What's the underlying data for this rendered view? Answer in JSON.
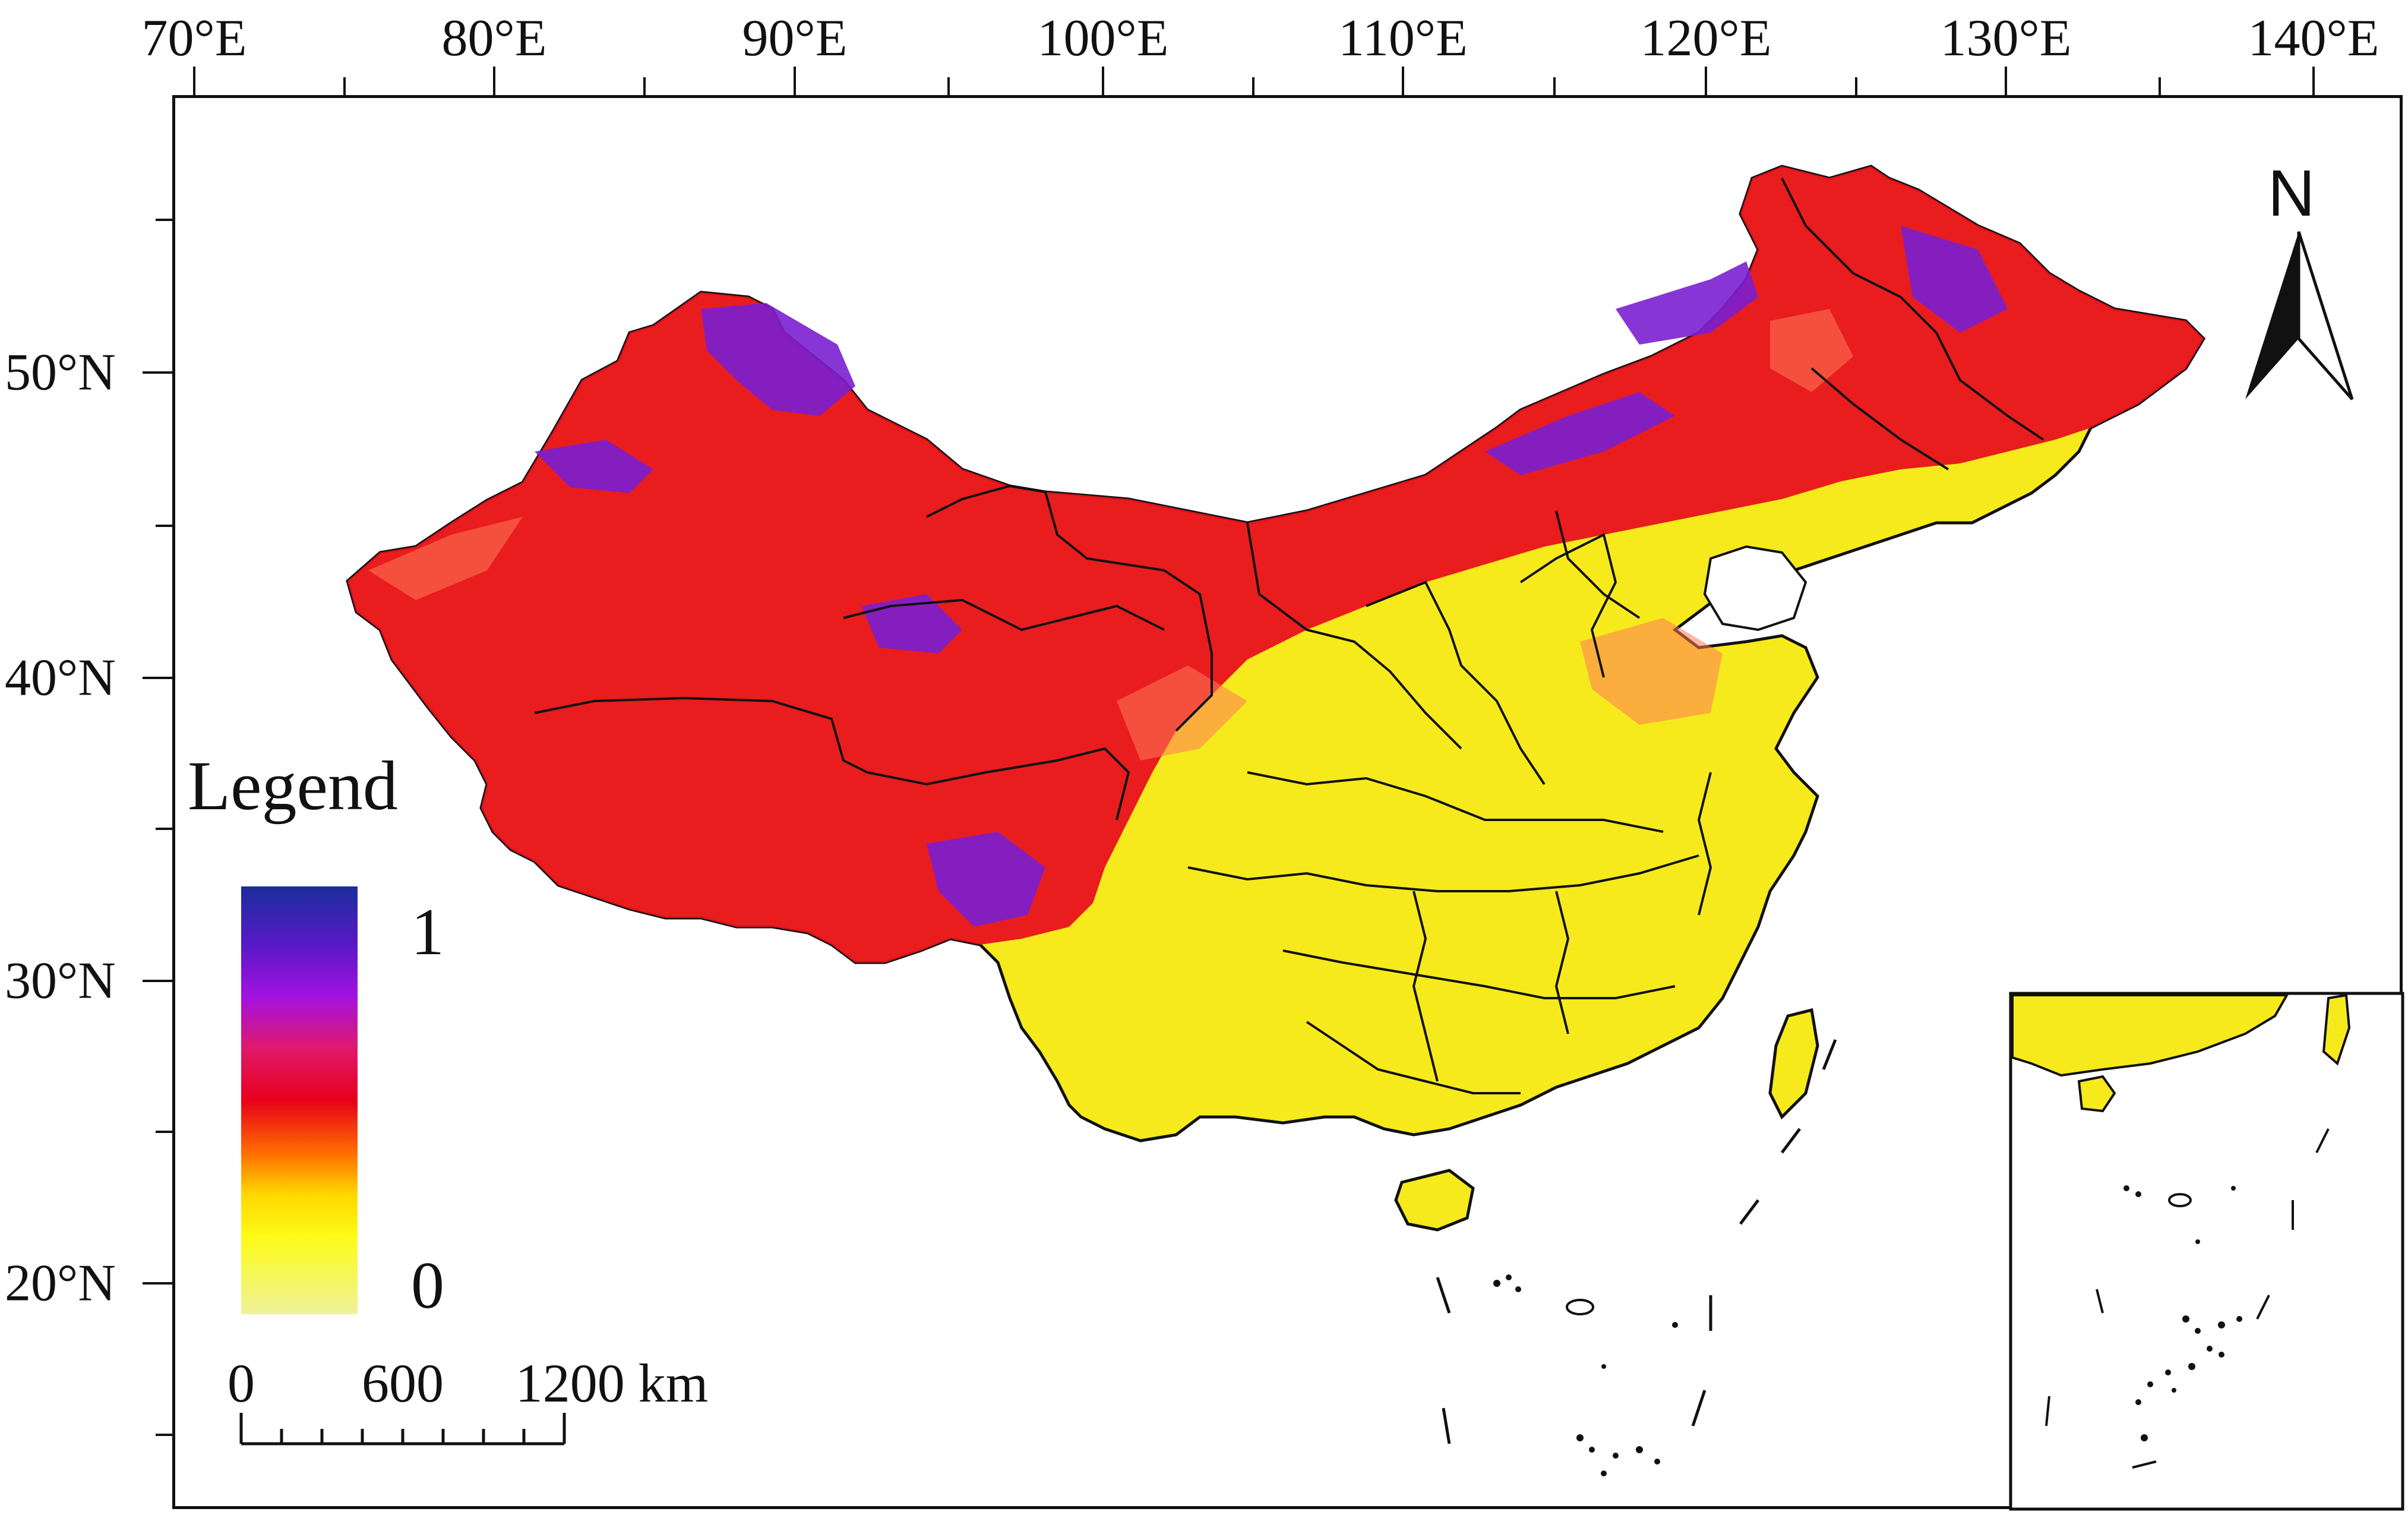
{
  "longitude_labels": [
    "70°E",
    "80°E",
    "90°E",
    "100°E",
    "110°E",
    "120°E",
    "130°E",
    "140°E"
  ],
  "latitude_labels": [
    "50°N",
    "40°N",
    "30°N",
    "20°N"
  ],
  "legend": {
    "title": "Legend",
    "max_label": "1",
    "min_label": "0",
    "colors": [
      "#1a2d9c",
      "#a512e0",
      "#e8001a",
      "#ffd800",
      "#eef29a"
    ]
  },
  "scale_bar": {
    "labels": [
      "0",
      "600",
      "1200 km"
    ]
  },
  "north_arrow": {
    "label": "N",
    "icon": "north-arrow-icon"
  },
  "colors": {
    "high": "#7a1fd0",
    "mid": "#e8121e",
    "low": "#f6ea1c",
    "outline": "#111111"
  }
}
